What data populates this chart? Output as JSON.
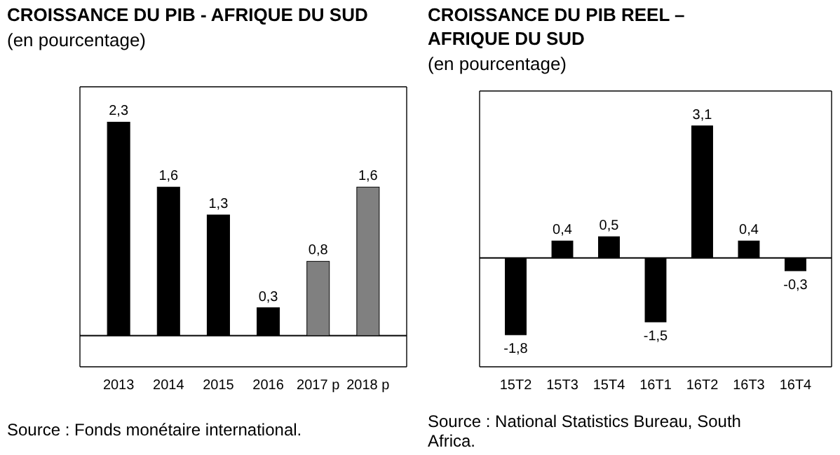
{
  "chart_data": [
    {
      "type": "bar",
      "title": "CROISSANCE DU PIB - AFRIQUE DU SUD",
      "subtitle": "(en pourcentage)",
      "categories": [
        "2013",
        "2014",
        "2015",
        "2016",
        "2017 p",
        "2018 p"
      ],
      "values": [
        2.3,
        1.6,
        1.3,
        0.3,
        0.8,
        1.6
      ],
      "value_labels": [
        "2,3",
        "1,6",
        "1,3",
        "0,3",
        "0,8",
        "1,6"
      ],
      "colors": [
        "#000000",
        "#000000",
        "#000000",
        "#000000",
        "#808080",
        "#808080"
      ],
      "annotations": [
        "Source : Fonds monétaire international."
      ]
    },
    {
      "type": "bar",
      "title": "CROISSANCE DU PIB REEL –\nAFRIQUE DU SUD",
      "subtitle": "(en pourcentage)",
      "categories": [
        "15T2",
        "15T3",
        "15T4",
        "16T1",
        "16T2",
        "16T3",
        "16T4"
      ],
      "values": [
        -1.8,
        0.4,
        0.5,
        -1.5,
        3.1,
        0.4,
        -0.3
      ],
      "value_labels": [
        "-1,8",
        "0,4",
        "0,5",
        "-1,5",
        "3,1",
        "0,4",
        "-0,3"
      ],
      "color": "#000000",
      "annotations": [
        "Source : National Statistics Bureau, South\nAfrica."
      ]
    }
  ]
}
